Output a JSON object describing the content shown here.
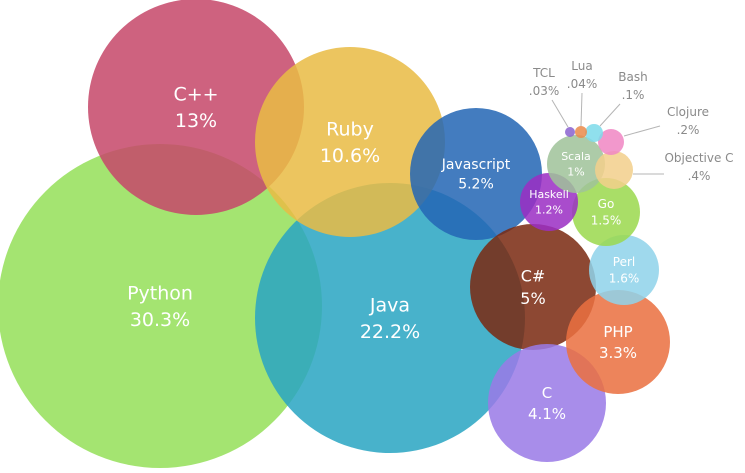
{
  "chart_data": {
    "type": "bubble",
    "unit": "%",
    "bubbles": [
      {
        "name": "Python",
        "label": "Python",
        "value_label": "30.3%",
        "value": 30.3,
        "color": "#95e05a"
      },
      {
        "name": "Java",
        "label": "Java",
        "value_label": "22.2%",
        "value": 22.2,
        "color": "#2aa5c2"
      },
      {
        "name": "C++",
        "label": "C++",
        "value_label": "13%",
        "value": 13,
        "color": "#c6486a"
      },
      {
        "name": "Ruby",
        "label": "Ruby",
        "value_label": "10.6%",
        "value": 10.6,
        "color": "#e9bb45"
      },
      {
        "name": "Javascript",
        "label": "Javascript",
        "value_label": "5.2%",
        "value": 5.2,
        "color": "#2466b4"
      },
      {
        "name": "C#",
        "label": "C#",
        "value_label": "5%",
        "value": 5,
        "color": "#7a2a12"
      },
      {
        "name": "C",
        "label": "C",
        "value_label": "4.1%",
        "value": 4.1,
        "color": "#9a7ae6"
      },
      {
        "name": "PHP",
        "label": "PHP",
        "value_label": "3.3%",
        "value": 3.3,
        "color": "#ea7040"
      },
      {
        "name": "Perl",
        "label": "Perl",
        "value_label": "1.6%",
        "value": 1.6,
        "color": "#8fd3ea"
      },
      {
        "name": "Go",
        "label": "Go",
        "value_label": "1.5%",
        "value": 1.5,
        "color": "#9bd94e"
      },
      {
        "name": "Haskell",
        "label": "Haskell",
        "value_label": "1.2%",
        "value": 1.2,
        "color": "#9b2fc4"
      },
      {
        "name": "Scala",
        "label": "Scala",
        "value_label": "1%",
        "value": 1,
        "color": "#9fc39a"
      },
      {
        "name": "Objective C",
        "label": "Objective C",
        "value_label": ".4%",
        "value": 0.4,
        "color": "#f2cf8c"
      },
      {
        "name": "Clojure",
        "label": "Clojure",
        "value_label": ".2%",
        "value": 0.2,
        "color": "#f087c4"
      },
      {
        "name": "Bash",
        "label": "Bash",
        "value_label": ".1%",
        "value": 0.1,
        "color": "#7edbea"
      },
      {
        "name": "Lua",
        "label": "Lua",
        "value_label": ".04%",
        "value": 0.04,
        "color": "#ea8a4c"
      },
      {
        "name": "TCL",
        "label": "TCL",
        "value_label": ".03%",
        "value": 0.03,
        "color": "#8b63cf"
      }
    ]
  }
}
